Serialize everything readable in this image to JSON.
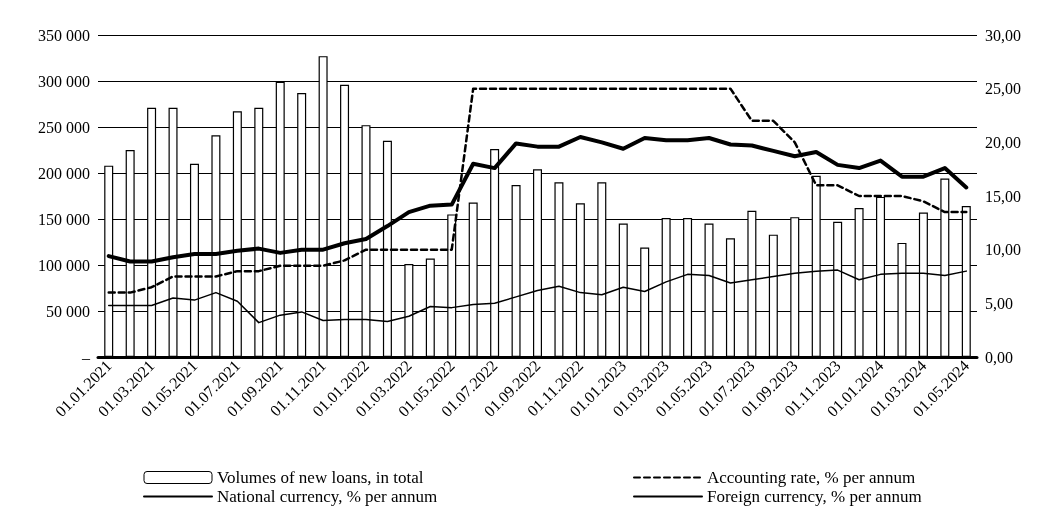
{
  "chart_data": {
    "type": "bar",
    "categories": [
      "01.01.2021",
      null,
      "01.03.2021",
      null,
      "01.05.2021",
      null,
      "01.07.2021",
      null,
      "01.09.2021",
      null,
      "01.11.2021",
      null,
      "01.01.2022",
      null,
      "01.03.2022",
      null,
      "01.05.2022",
      null,
      "01.07.2022",
      null,
      "01.09.2022",
      null,
      "01.11.2022",
      null,
      "01.01.2023",
      null,
      "01.03.2023",
      null,
      "01.05.2023",
      null,
      "01.07.2023",
      null,
      "01.09.2023",
      null,
      "01.11.2023",
      null,
      "01.01.2024",
      null,
      "01.03.2024",
      null,
      "01.05.2024"
    ],
    "series": [
      {
        "name": "Volumes of new loans, in total",
        "color": "#ffffff",
        "values": [
          208000,
          225000,
          271000,
          271000,
          210000,
          241000,
          267000,
          271000,
          299000,
          287000,
          327000,
          296000,
          252000,
          235000,
          101000,
          107000,
          155000,
          168000,
          226000,
          187000,
          204000,
          190000,
          167000,
          190000,
          145000,
          119000,
          151000,
          151000,
          145000,
          129000,
          159000,
          133000,
          152000,
          197000,
          147000,
          162000,
          174000,
          124000,
          157000,
          194000,
          164000
        ]
      },
      {
        "name": "Accounting rate, % per annum",
        "type": "line",
        "axis": "y2",
        "color": "#000000",
        "line_style": "dashed",
        "values": [
          6.0,
          6.0,
          6.5,
          7.5,
          7.5,
          7.5,
          8.0,
          8.0,
          8.5,
          8.5,
          8.5,
          9.0,
          10.0,
          10.0,
          10.0,
          10.0,
          10.0,
          25.0,
          25.0,
          25.0,
          25.0,
          25.0,
          25.0,
          25.0,
          25.0,
          25.0,
          25.0,
          25.0,
          25.0,
          25.0,
          22.0,
          22.0,
          20.0,
          16.0,
          16.0,
          15.0,
          15.0,
          15.0,
          14.5,
          13.5,
          13.5
        ]
      },
      {
        "name": "National currency, % per annum",
        "type": "line",
        "axis": "y2",
        "color": "#000000",
        "line_style": "solid",
        "values": [
          9.4,
          8.9,
          8.9,
          9.3,
          9.6,
          9.6,
          9.9,
          10.1,
          9.7,
          10.0,
          10.0,
          10.6,
          11.0,
          12.2,
          13.5,
          14.1,
          14.2,
          18.0,
          17.6,
          19.9,
          19.6,
          19.6,
          20.5,
          20.0,
          19.4,
          20.4,
          20.2,
          20.2,
          20.4,
          19.8,
          19.7,
          19.2,
          18.7,
          19.1,
          17.9,
          17.6,
          18.3,
          16.8,
          16.8,
          17.6,
          15.8
        ]
      },
      {
        "name": "Foreign currency, % per annum",
        "type": "line",
        "axis": "y2",
        "color": "#000000",
        "line_style": "solid",
        "values": [
          4.8,
          4.8,
          4.8,
          5.5,
          5.3,
          6.0,
          5.2,
          3.2,
          3.9,
          4.2,
          3.4,
          3.5,
          3.5,
          3.3,
          3.8,
          4.7,
          4.6,
          4.9,
          5.0,
          5.6,
          6.2,
          6.6,
          6.0,
          5.8,
          6.5,
          6.1,
          7.0,
          7.7,
          7.6,
          6.9,
          7.2,
          7.5,
          7.8,
          8.0,
          8.1,
          7.2,
          7.7,
          7.8,
          7.8,
          7.6,
          8.0
        ]
      }
    ],
    "ylim": [
      0,
      350000
    ],
    "yticks": [
      {
        "value": 0,
        "label": "–"
      },
      {
        "value": 50000,
        "label": "50 000"
      },
      {
        "value": 100000,
        "label": "100 000"
      },
      {
        "value": 150000,
        "label": "150 000"
      },
      {
        "value": 200000,
        "label": "200 000"
      },
      {
        "value": 250000,
        "label": "250 000"
      },
      {
        "value": 300000,
        "label": "300 000"
      },
      {
        "value": 350000,
        "label": "350 000"
      }
    ],
    "y2lim": [
      0,
      30
    ],
    "y2ticks": [
      {
        "value": 0,
        "label": "0,00"
      },
      {
        "value": 5,
        "label": "5,00"
      },
      {
        "value": 10,
        "label": "10,00"
      },
      {
        "value": 15,
        "label": "15,00"
      },
      {
        "value": 20,
        "label": "20,00"
      },
      {
        "value": 25,
        "label": "25,00"
      },
      {
        "value": 30,
        "label": "30,00"
      }
    ],
    "grid": "y",
    "legend": "bottom",
    "marker": "none"
  }
}
